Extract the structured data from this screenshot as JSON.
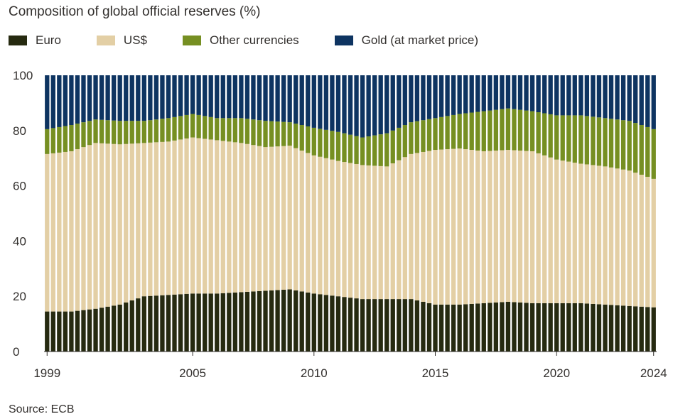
{
  "title": "Composition of global official reserves (%)",
  "source": "Source: ECB",
  "colors": {
    "Euro": "#262a10",
    "US$": "#e3cfa5",
    "Other currencies": "#768f22",
    "Gold (at market price)": "#0e3461"
  },
  "chart_data": {
    "type": "bar",
    "stacked": true,
    "title": "Composition of global official reserves (%)",
    "xlabel": "",
    "ylabel": "",
    "ylim": [
      0,
      100
    ],
    "yticks": [
      0,
      20,
      40,
      60,
      80,
      100
    ],
    "xticks": [
      "1999",
      "2005",
      "2010",
      "2015",
      "2020",
      "2024"
    ],
    "x_range": [
      1999,
      2024
    ],
    "legend": [
      "Euro",
      "US$",
      "Other currencies",
      "Gold (at market price)"
    ],
    "legend_position": "top-left",
    "series_keypoints_note": "Year-indexed keypoints; the chart is drawn at quarterly frequency by linear interpolation between these points.",
    "series": [
      {
        "name": "Euro",
        "keypoints": [
          [
            1999,
            14.5
          ],
          [
            2000,
            14.5
          ],
          [
            2001,
            15.5
          ],
          [
            2002,
            17
          ],
          [
            2003,
            20
          ],
          [
            2004,
            20.5
          ],
          [
            2005,
            21
          ],
          [
            2006,
            21
          ],
          [
            2007,
            21.5
          ],
          [
            2008,
            22
          ],
          [
            2009,
            22.5
          ],
          [
            2010,
            21
          ],
          [
            2011,
            20
          ],
          [
            2012,
            19
          ],
          [
            2013,
            19
          ],
          [
            2014,
            19
          ],
          [
            2015,
            17
          ],
          [
            2016,
            17
          ],
          [
            2017,
            17.5
          ],
          [
            2018,
            18
          ],
          [
            2019,
            17.5
          ],
          [
            2020,
            17.5
          ],
          [
            2021,
            17.5
          ],
          [
            2022,
            17
          ],
          [
            2023,
            16.5
          ],
          [
            2024,
            16
          ]
        ]
      },
      {
        "name": "US$",
        "keypoints": [
          [
            1999,
            71.5
          ],
          [
            2000,
            72.5
          ],
          [
            2001,
            75.5
          ],
          [
            2002,
            75
          ],
          [
            2003,
            75.5
          ],
          [
            2004,
            76
          ],
          [
            2005,
            77.5
          ],
          [
            2006,
            76.5
          ],
          [
            2007,
            75.5
          ],
          [
            2008,
            74
          ],
          [
            2009,
            74.5
          ],
          [
            2010,
            71
          ],
          [
            2011,
            69
          ],
          [
            2012,
            67.5
          ],
          [
            2013,
            67
          ],
          [
            2014,
            71.5
          ],
          [
            2015,
            73
          ],
          [
            2016,
            73.5
          ],
          [
            2017,
            72.5
          ],
          [
            2018,
            73
          ],
          [
            2019,
            72.5
          ],
          [
            2020,
            69.5
          ],
          [
            2021,
            68
          ],
          [
            2022,
            67
          ],
          [
            2023,
            65.5
          ],
          [
            2024,
            62.5
          ]
        ]
      },
      {
        "name": "Other currencies",
        "keypoints": [
          [
            1999,
            80.5
          ],
          [
            2000,
            82
          ],
          [
            2001,
            84
          ],
          [
            2002,
            83.5
          ],
          [
            2003,
            83.5
          ],
          [
            2004,
            84.5
          ],
          [
            2005,
            86
          ],
          [
            2006,
            84.5
          ],
          [
            2007,
            84.5
          ],
          [
            2008,
            83.5
          ],
          [
            2009,
            83
          ],
          [
            2010,
            81
          ],
          [
            2011,
            79.5
          ],
          [
            2012,
            77.5
          ],
          [
            2013,
            79
          ],
          [
            2014,
            83
          ],
          [
            2015,
            84.5
          ],
          [
            2016,
            86
          ],
          [
            2017,
            87
          ],
          [
            2018,
            88
          ],
          [
            2019,
            87
          ],
          [
            2020,
            85.5
          ],
          [
            2021,
            85.5
          ],
          [
            2022,
            84.5
          ],
          [
            2023,
            83.5
          ],
          [
            2024,
            80.5
          ]
        ]
      },
      {
        "name": "Gold (at market price)",
        "keypoints": [
          [
            1999,
            100
          ],
          [
            2024,
            100
          ]
        ]
      }
    ]
  }
}
